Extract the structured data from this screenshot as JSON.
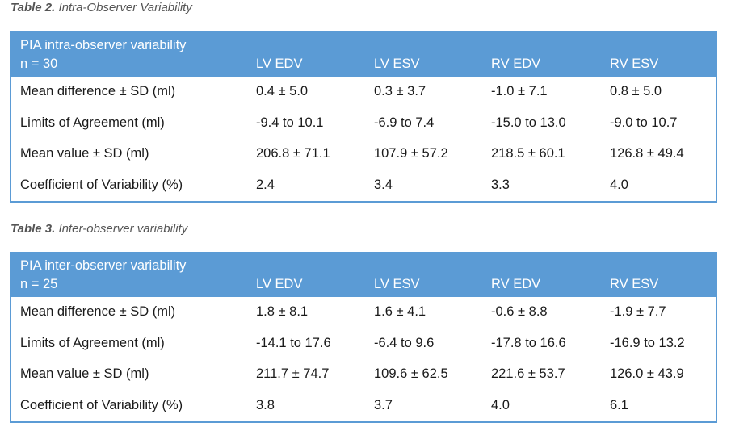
{
  "tables": [
    {
      "caption_label": "Table 2.",
      "caption_title": "Intra-Observer Variability",
      "header_line1": "PIA intra-observer variability",
      "header_line2": "n = 30",
      "columns": [
        "LV EDV",
        "LV ESV",
        "RV EDV",
        "RV ESV"
      ],
      "rows": [
        {
          "label": "Mean difference ± SD (ml)",
          "values": [
            "0.4 ± 5.0",
            "0.3 ± 3.7",
            "-1.0 ± 7.1",
            "0.8 ± 5.0"
          ]
        },
        {
          "label": "Limits of Agreement (ml)",
          "values": [
            "-9.4 to 10.1",
            "-6.9 to 7.4",
            "-15.0 to 13.0",
            "-9.0 to 10.7"
          ]
        },
        {
          "label": "Mean value ± SD (ml)",
          "values": [
            "206.8 ± 71.1",
            "107.9 ± 57.2",
            "218.5 ± 60.1",
            "126.8 ± 49.4"
          ]
        },
        {
          "label": "Coefficient of Variability (%)",
          "values": [
            "2.4",
            "3.4",
            "3.3",
            "4.0"
          ]
        }
      ]
    },
    {
      "caption_label": "Table 3.",
      "caption_title": "Inter-observer variability",
      "header_line1": "PIA inter-observer variability",
      "header_line2": "n = 25",
      "columns": [
        "LV EDV",
        "LV ESV",
        "RV EDV",
        "RV ESV"
      ],
      "rows": [
        {
          "label": "Mean difference ± SD (ml)",
          "values": [
            "1.8 ± 8.1",
            "1.6 ± 4.1",
            "-0.6 ± 8.8",
            "-1.9 ± 7.7"
          ]
        },
        {
          "label": "Limits of Agreement (ml)",
          "values": [
            "-14.1 to 17.6",
            "-6.4 to 9.6",
            "-17.8 to 16.6",
            "-16.9 to 13.2"
          ]
        },
        {
          "label": "Mean value ± SD (ml)",
          "values": [
            "211.7 ± 74.7",
            "109.6 ± 62.5",
            "221.6 ± 53.7",
            "126.0 ± 43.9"
          ]
        },
        {
          "label": "Coefficient of Variability (%)",
          "values": [
            "3.8",
            "3.7",
            "4.0",
            "6.1"
          ]
        }
      ]
    }
  ],
  "colors": {
    "header_bg": "#5b9bd5",
    "header_text": "#ffffff",
    "caption_text": "#555555"
  }
}
